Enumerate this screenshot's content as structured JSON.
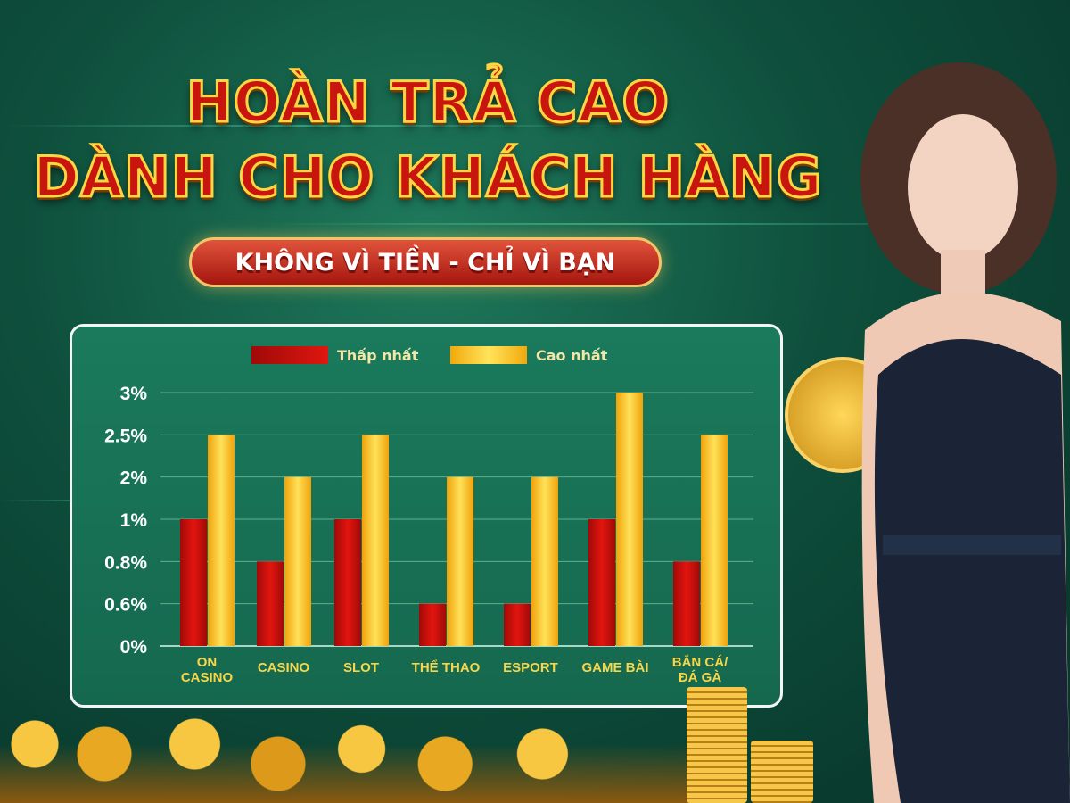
{
  "banner": {
    "title_line1": "HOÀN TRẢ CAO",
    "title_line2": "DÀNH CHO KHÁCH HÀNG",
    "slogan": "KHÔNG VÌ TIỀN - CHỈ VÌ BẠN"
  },
  "chart_data": {
    "type": "bar",
    "title": "",
    "xlabel": "",
    "ylabel": "",
    "y_ticks": [
      "0%",
      "0.6%",
      "0.8%",
      "1%",
      "2%",
      "2.5%",
      "3%"
    ],
    "y_tick_values": [
      0,
      0.6,
      0.8,
      1,
      2,
      2.5,
      3
    ],
    "y_scale": "categorical-tick (evenly spaced ticks)",
    "grid": true,
    "legend": "top",
    "categories": [
      "ON CASINO",
      "CASINO",
      "SLOT",
      "THỂ THAO",
      "ESPORT",
      "GAME BÀI",
      "BẮN CÁ/ ĐÁ GÀ"
    ],
    "series": [
      {
        "name": "Thấp nhất",
        "color": "#c8100c",
        "values": [
          1,
          0.8,
          1,
          0.6,
          0.6,
          1,
          0.8
        ]
      },
      {
        "name": "Cao nhất",
        "color": "#f7c21c",
        "values": [
          2.5,
          2,
          2.5,
          2,
          2,
          3,
          2.5
        ]
      }
    ]
  }
}
